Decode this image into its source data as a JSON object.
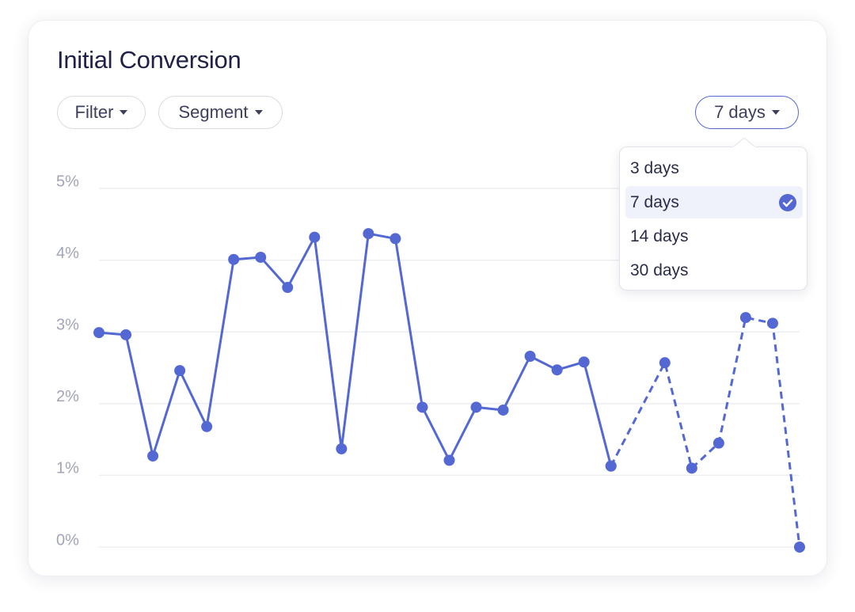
{
  "title": "Initial Conversion",
  "controls": {
    "filter": "Filter",
    "segment": "Segment",
    "range": "7 days"
  },
  "dropdown": {
    "options": [
      {
        "label": "3 days",
        "selected": false
      },
      {
        "label": "7 days",
        "selected": true
      },
      {
        "label": "14 days",
        "selected": false
      },
      {
        "label": "30 days",
        "selected": false
      }
    ]
  },
  "chart_data": {
    "type": "line",
    "ylim": [
      0,
      5
    ],
    "yticks": [
      {
        "value": 0,
        "label": "0%"
      },
      {
        "value": 1,
        "label": "1%"
      },
      {
        "value": 2,
        "label": "2%"
      },
      {
        "value": 3,
        "label": "3%"
      },
      {
        "value": 4,
        "label": "4%"
      },
      {
        "value": 5,
        "label": "5%"
      }
    ],
    "xlim": [
      0,
      26
    ],
    "grid": true,
    "series": [
      {
        "color": "#5468d4",
        "dashed": false,
        "x": [
          0,
          1,
          2,
          3,
          4,
          5,
          6,
          7,
          8,
          9,
          10,
          11,
          12,
          13,
          14,
          15,
          16,
          17,
          18,
          19
        ],
        "values": [
          2.99,
          2.96,
          1.27,
          2.46,
          1.68,
          4.01,
          4.04,
          3.62,
          4.32,
          1.37,
          4.37,
          4.3,
          1.95,
          1.21,
          1.95,
          1.91,
          2.66,
          2.47,
          2.58,
          1.13
        ]
      },
      {
        "color": "#5468d4",
        "dashed": true,
        "x": [
          19,
          21,
          22,
          23,
          24,
          25,
          26
        ],
        "values": [
          1.13,
          2.57,
          1.1,
          1.45,
          3.2,
          3.12,
          0
        ]
      }
    ]
  }
}
